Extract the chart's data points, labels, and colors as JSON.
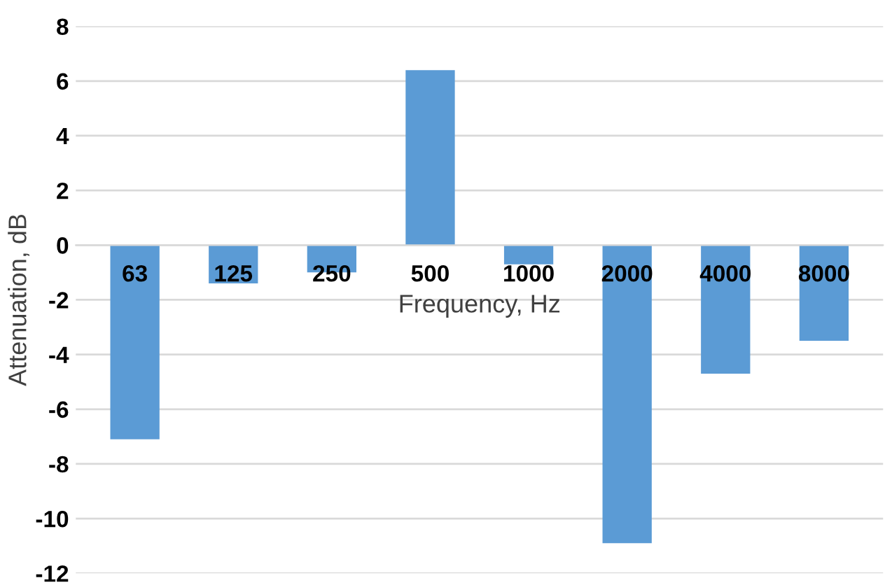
{
  "chart_data": {
    "type": "bar",
    "xlabel": "Frequency, Hz",
    "ylabel": "Attenuation, dB",
    "categories": [
      "63",
      "125",
      "250",
      "500",
      "1000",
      "2000",
      "4000",
      "8000"
    ],
    "values": [
      -7.1,
      -1.4,
      -1.0,
      6.4,
      -0.7,
      -10.9,
      -4.7,
      -3.5
    ],
    "color": "#5b9bd5",
    "ylim": [
      -12,
      8
    ],
    "yticks": [
      -12,
      -10,
      -8,
      -6,
      -4,
      -2,
      0,
      2,
      4,
      6,
      8
    ],
    "grid": "y"
  }
}
